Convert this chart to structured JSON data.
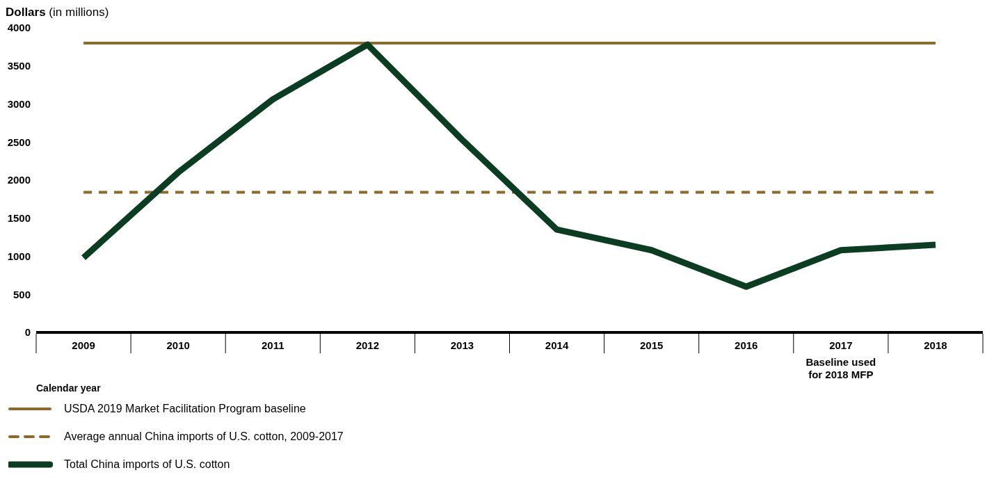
{
  "chart_data": {
    "type": "line",
    "ylabel": "Dollars (in millions)",
    "xlabel": "Calendar year",
    "categories": [
      "2009",
      "2010",
      "2011",
      "2012",
      "2013",
      "2014",
      "2015",
      "2016",
      "2017",
      "2018"
    ],
    "series": [
      {
        "name": "USDA 2019 Market Facilitation Program baseline",
        "color": "#8b6a2b",
        "line_style": "solid",
        "values": [
          3800,
          3800,
          3800,
          3800,
          3800,
          3800,
          3800,
          3800,
          3800,
          3800
        ]
      },
      {
        "name": "Average annual China imports of U.S. cotton, 2009-2017",
        "color": "#8b6a2b",
        "line_style": "dashed",
        "values": [
          1840,
          1840,
          1840,
          1840,
          1840,
          1840,
          1840,
          1840,
          1840,
          1840
        ]
      },
      {
        "name": "Total China imports of U.S. cotton",
        "color": "#0b3d23",
        "line_style": "solid",
        "values": [
          980,
          2100,
          3060,
          3780,
          2530,
          1350,
          1080,
          600,
          1080,
          1150
        ]
      }
    ],
    "ylim": [
      0,
      4000
    ],
    "yticks": [
      0,
      500,
      1000,
      1500,
      2000,
      2500,
      3000,
      3500,
      4000
    ],
    "grid": false,
    "legend": "bottom",
    "marker": "none",
    "annotations": [
      "Baseline used for 2018 MFP"
    ]
  }
}
